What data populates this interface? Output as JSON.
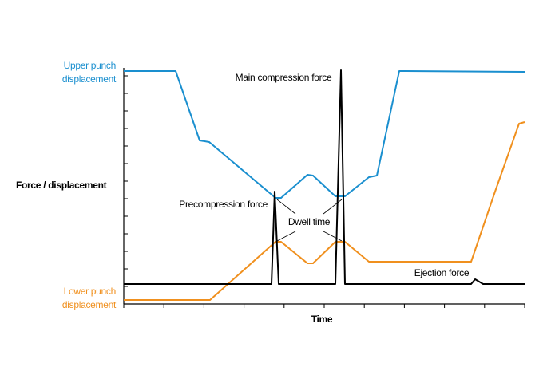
{
  "labels": {
    "upper_punch": [
      "Upper punch",
      "displacement"
    ],
    "lower_punch": [
      "Lower punch",
      "displacement"
    ],
    "y_axis": "Force / displacement",
    "x_axis": "Time",
    "main_compression": "Main compression force",
    "precompression": "Precompression force",
    "dwell_time": "Dwell time",
    "ejection": "Ejection force"
  }
}
